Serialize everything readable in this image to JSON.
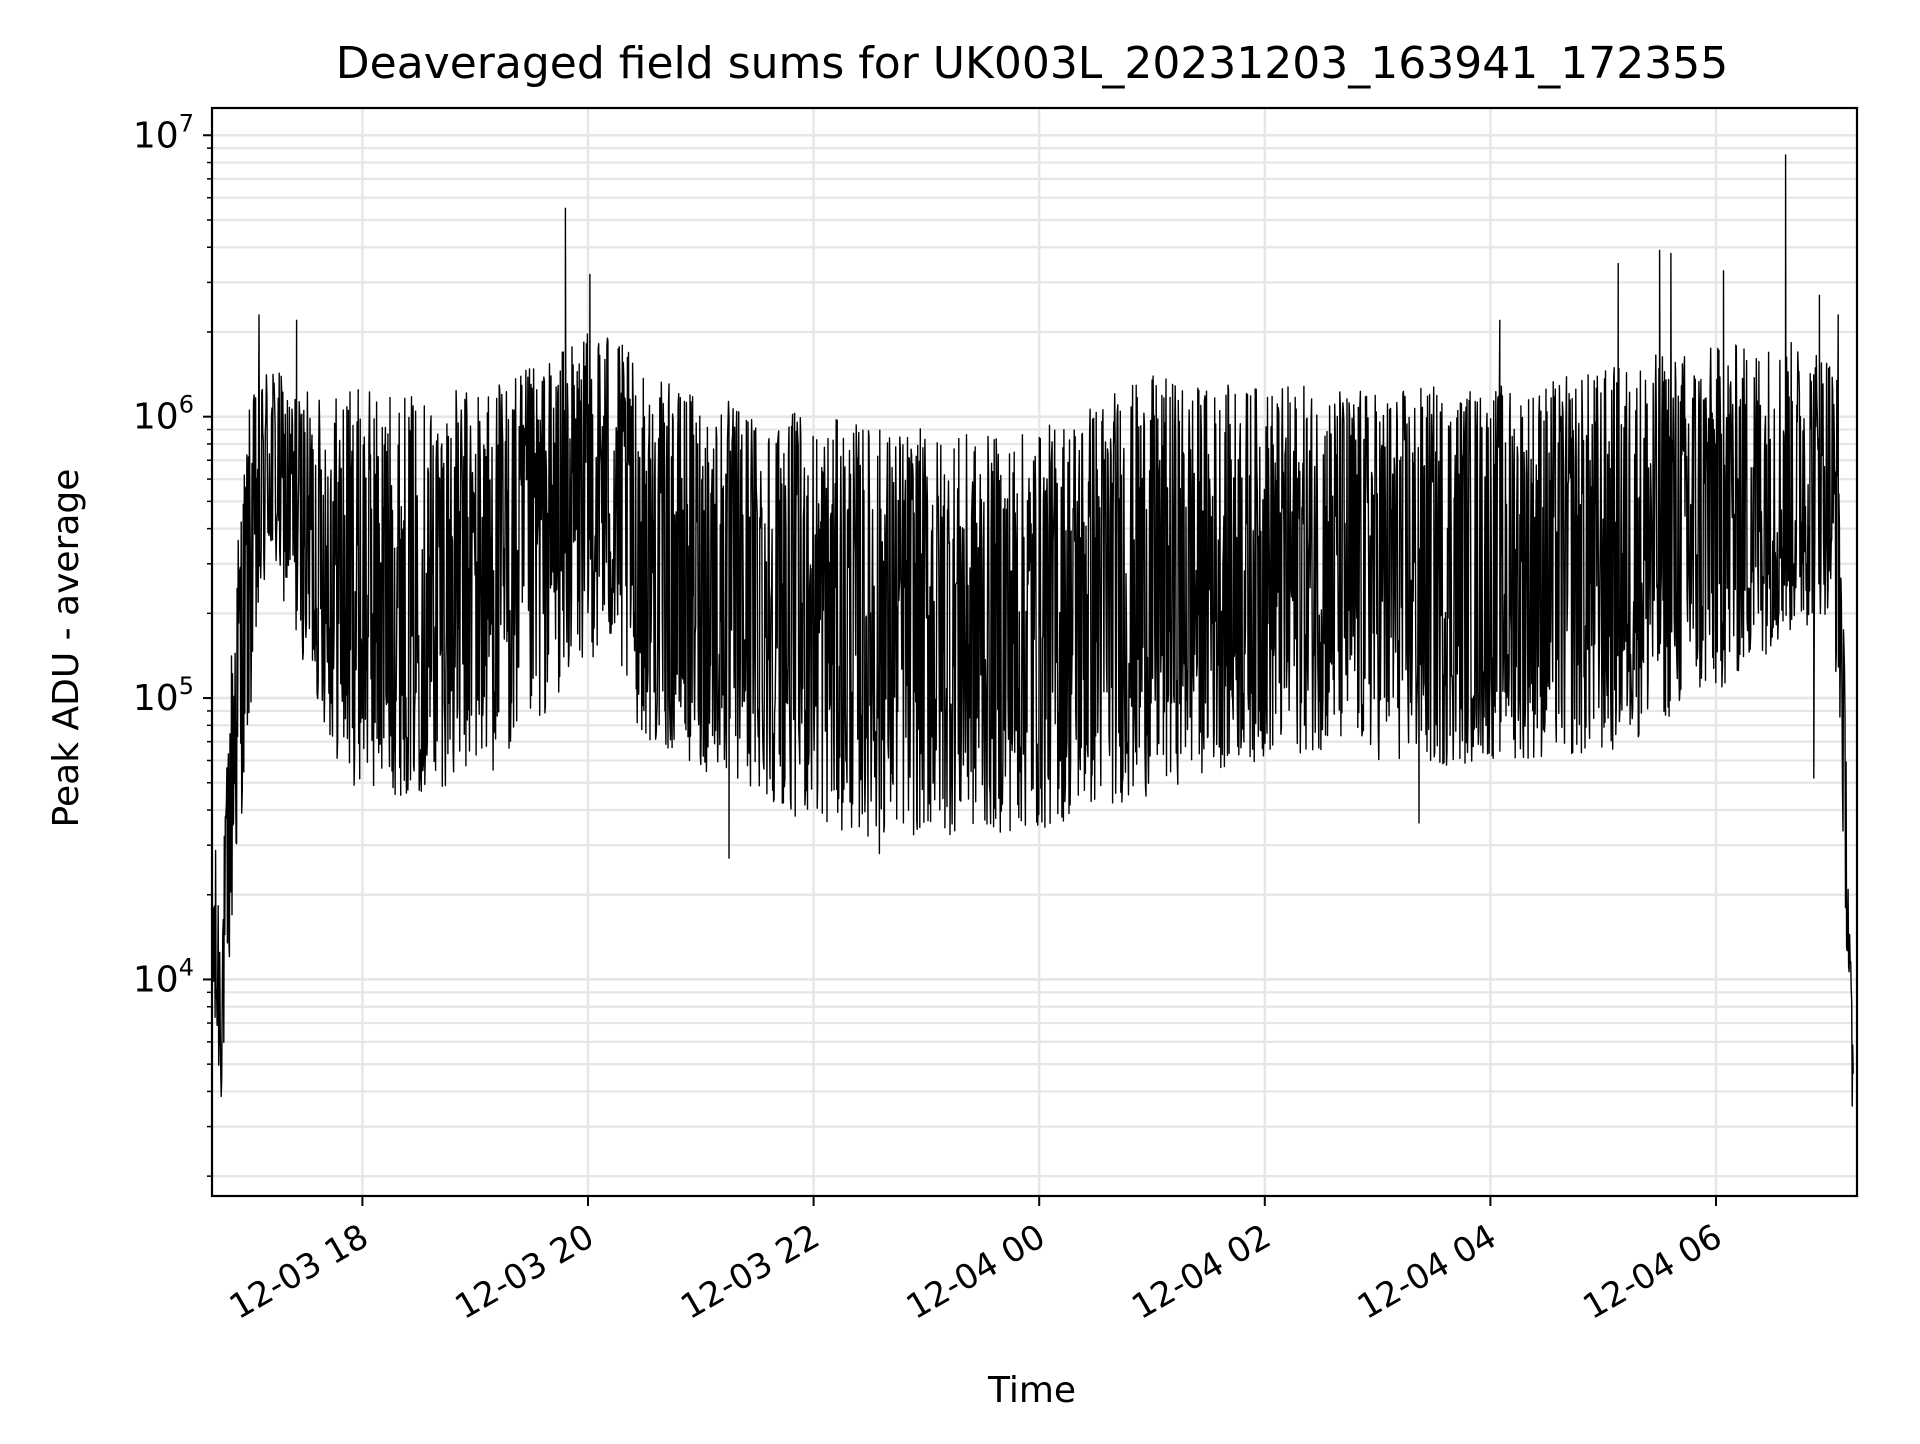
{
  "chart_data": {
    "type": "line",
    "title": "Deaveraged field sums for UK003L_20231203_163941_172355",
    "xlabel": "Time",
    "ylabel": "Peak ADU - average",
    "yscale": "log",
    "ylim": [
      1700,
      12500000
    ],
    "xlim": [
      "2023-12-03 16:40",
      "2023-12-04 07:15"
    ],
    "grid": true,
    "legend": "none",
    "line_color": "#000000",
    "x_ticks": [
      {
        "value": "2023-12-03 18:00",
        "label": "12-03 18"
      },
      {
        "value": "2023-12-03 20:00",
        "label": "12-03 20"
      },
      {
        "value": "2023-12-03 22:00",
        "label": "12-03 22"
      },
      {
        "value": "2023-12-04 00:00",
        "label": "12-04 00"
      },
      {
        "value": "2023-12-04 02:00",
        "label": "12-04 02"
      },
      {
        "value": "2023-12-04 04:00",
        "label": "12-04 04"
      },
      {
        "value": "2023-12-04 06:00",
        "label": "12-04 06"
      }
    ],
    "y_ticks": [
      {
        "value": 10000,
        "base": "10",
        "exp": "4"
      },
      {
        "value": 100000,
        "base": "10",
        "exp": "5"
      },
      {
        "value": 1000000,
        "base": "10",
        "exp": "6"
      },
      {
        "value": 10000000,
        "base": "10",
        "exp": "7"
      }
    ],
    "series": [
      {
        "time_range": [
          "2023-12-03 16:40",
          "2023-12-04 07:13"
        ],
        "envelope": [
          {
            "t": "2023-12-03 16:40",
            "low": 6000,
            "high": 40000
          },
          {
            "t": "2023-12-03 16:45",
            "low": 3600,
            "high": 18000
          },
          {
            "t": "2023-12-03 16:52",
            "low": 20000,
            "high": 320000
          },
          {
            "t": "2023-12-03 17:00",
            "low": 80000,
            "high": 1100000
          },
          {
            "t": "2023-12-03 17:10",
            "low": 300000,
            "high": 1700000
          },
          {
            "t": "2023-12-03 17:20",
            "low": 200000,
            "high": 1300000
          },
          {
            "t": "2023-12-03 17:35",
            "low": 100000,
            "high": 1200000
          },
          {
            "t": "2023-12-03 17:50",
            "low": 50000,
            "high": 1300000
          },
          {
            "t": "2023-12-03 18:10",
            "low": 45000,
            "high": 1250000
          },
          {
            "t": "2023-12-03 18:30",
            "low": 45000,
            "high": 1200000
          },
          {
            "t": "2023-12-03 18:50",
            "low": 50000,
            "high": 1250000
          },
          {
            "t": "2023-12-03 19:10",
            "low": 55000,
            "high": 1350000
          },
          {
            "t": "2023-12-03 19:30",
            "low": 70000,
            "high": 1500000
          },
          {
            "t": "2023-12-03 19:50",
            "low": 120000,
            "high": 1800000
          },
          {
            "t": "2023-12-03 20:10",
            "low": 150000,
            "high": 2200000
          },
          {
            "t": "2023-12-03 20:30",
            "low": 70000,
            "high": 1400000
          },
          {
            "t": "2023-12-03 21:00",
            "low": 55000,
            "high": 1200000
          },
          {
            "t": "2023-12-03 21:30",
            "low": 45000,
            "high": 1100000
          },
          {
            "t": "2023-12-03 22:00",
            "low": 35000,
            "high": 1000000
          },
          {
            "t": "2023-12-03 22:30",
            "low": 32000,
            "high": 950000
          },
          {
            "t": "2023-12-03 23:00",
            "low": 32000,
            "high": 900000
          },
          {
            "t": "2023-12-03 23:30",
            "low": 33000,
            "high": 850000
          },
          {
            "t": "2023-12-04 00:00",
            "low": 33000,
            "high": 900000
          },
          {
            "t": "2023-12-04 00:30",
            "low": 40000,
            "high": 1200000
          },
          {
            "t": "2023-12-04 01:00",
            "low": 45000,
            "high": 1400000
          },
          {
            "t": "2023-12-04 01:30",
            "low": 55000,
            "high": 1300000
          },
          {
            "t": "2023-12-04 02:00",
            "low": 60000,
            "high": 1300000
          },
          {
            "t": "2023-12-04 02:30",
            "low": 65000,
            "high": 1300000
          },
          {
            "t": "2023-12-04 03:00",
            "low": 60000,
            "high": 1250000
          },
          {
            "t": "2023-12-04 03:30",
            "low": 55000,
            "high": 1300000
          },
          {
            "t": "2023-12-04 04:00",
            "low": 60000,
            "high": 1300000
          },
          {
            "t": "2023-12-04 04:30",
            "low": 60000,
            "high": 1350000
          },
          {
            "t": "2023-12-04 05:00",
            "low": 60000,
            "high": 1500000
          },
          {
            "t": "2023-12-04 05:30",
            "low": 80000,
            "high": 1700000
          },
          {
            "t": "2023-12-04 06:00",
            "low": 100000,
            "high": 1800000
          },
          {
            "t": "2023-12-04 06:30",
            "low": 150000,
            "high": 1900000
          },
          {
            "t": "2023-12-04 07:00",
            "low": 200000,
            "high": 1800000
          },
          {
            "t": "2023-12-04 07:05",
            "low": 100000,
            "high": 1500000
          },
          {
            "t": "2023-12-04 07:10",
            "low": 10000,
            "high": 40000
          },
          {
            "t": "2023-12-04 07:13",
            "low": 2500,
            "high": 5000
          }
        ],
        "peaks": [
          {
            "t": "2023-12-03 17:05",
            "y": 2300000
          },
          {
            "t": "2023-12-03 17:25",
            "y": 2200000
          },
          {
            "t": "2023-12-03 19:48",
            "y": 5500000
          },
          {
            "t": "2023-12-03 20:01",
            "y": 3200000
          },
          {
            "t": "2023-12-04 04:05",
            "y": 2200000
          },
          {
            "t": "2023-12-04 05:08",
            "y": 3500000
          },
          {
            "t": "2023-12-04 05:30",
            "y": 3900000
          },
          {
            "t": "2023-12-04 05:36",
            "y": 3800000
          },
          {
            "t": "2023-12-04 06:04",
            "y": 3300000
          },
          {
            "t": "2023-12-04 06:37",
            "y": 8500000
          },
          {
            "t": "2023-12-04 06:55",
            "y": 2700000
          },
          {
            "t": "2023-12-04 07:05",
            "y": 2300000
          }
        ],
        "troughs": [
          {
            "t": "2023-12-03 21:15",
            "y": 27000
          },
          {
            "t": "2023-12-03 22:35",
            "y": 28000
          },
          {
            "t": "2023-12-04 03:22",
            "y": 36000
          },
          {
            "t": "2023-12-04 06:52",
            "y": 52000
          }
        ]
      }
    ]
  }
}
